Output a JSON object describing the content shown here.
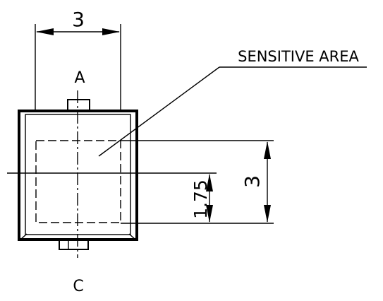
{
  "drawing": {
    "dim_top_width": "3",
    "dim_right_height": "3",
    "dim_offset": "1.75",
    "callout_label": "SENSITIVE AREA",
    "terminal_anode": "A",
    "terminal_cathode": "C"
  },
  "colors": {
    "line": "#000000",
    "background": "#ffffff"
  }
}
